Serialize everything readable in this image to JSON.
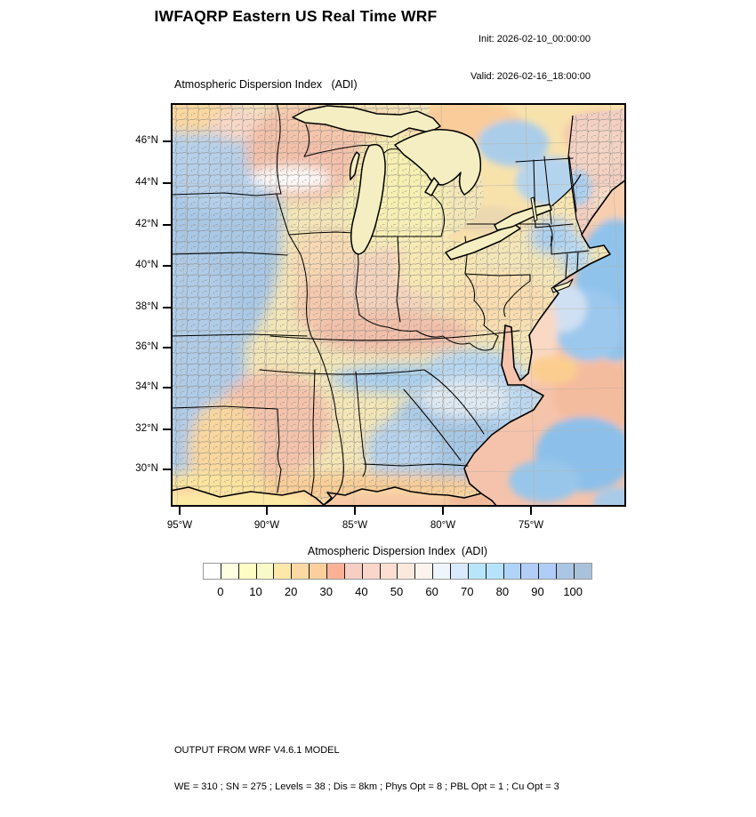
{
  "header": {
    "title": "IWFAQRP Eastern US Real Time WRF",
    "init_label": "Init: 2026-02-10_00:00:00",
    "valid_label": "Valid: 2026-02-16_18:00:00"
  },
  "map": {
    "subtitle": "Atmospheric Dispersion Index   (ADI)",
    "y_axis": {
      "tick_labels": [
        "46°N",
        "44°N",
        "42°N",
        "40°N",
        "38°N",
        "36°N",
        "34°N",
        "32°N",
        "30°N"
      ]
    },
    "x_axis": {
      "tick_labels": [
        "95°W",
        "90°W",
        "85°W",
        "80°W",
        "75°W"
      ]
    }
  },
  "colorbar": {
    "title": "Atmospheric Dispersion Index  (ADI)",
    "tick_labels": [
      "0",
      "10",
      "20",
      "30",
      "40",
      "50",
      "60",
      "70",
      "80",
      "90",
      "100"
    ],
    "colors": [
      "#ffffff",
      "#fefee1",
      "#fdfdc4",
      "#f9fac9",
      "#fce8a8",
      "#fcd9a4",
      "#fbd09e",
      "#fbb195",
      "#f6cfc4",
      "#f8d6ca",
      "#fadfd2",
      "#fce9de",
      "#fdf3ee",
      "#eff5fd",
      "#d9eafc",
      "#b9e5fb",
      "#b6e3fb",
      "#b0d4f8",
      "#b3cdf6",
      "#b1cdf7",
      "#abc6e4",
      "#a9c2da"
    ]
  },
  "footer": {
    "line1": "OUTPUT FROM WRF V4.6.1 MODEL",
    "line2": "WE = 310 ; SN = 275 ; Levels = 38 ; Dis = 8km ; Phys Opt = 8 ; PBL Opt = 1 ; Cu Opt = 3"
  }
}
